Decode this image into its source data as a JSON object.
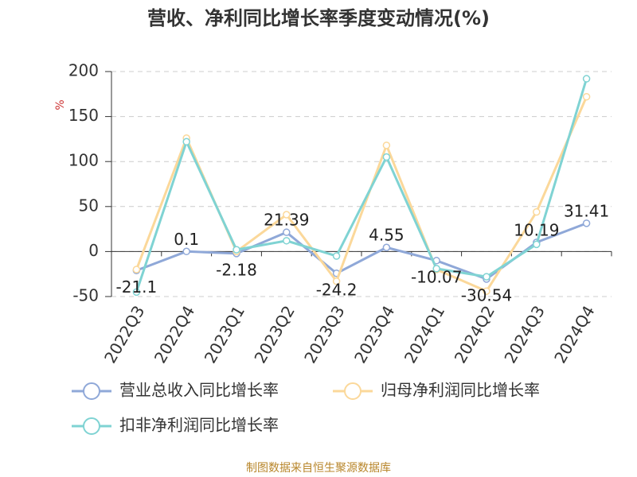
{
  "chart_data": {
    "type": "line",
    "title": "营收、净利同比增长率季度变动情况(%)",
    "y_label": "%",
    "source": "制图数据来自恒生聚源数据库",
    "categories": [
      "2022Q3",
      "2022Q4",
      "2023Q1",
      "2023Q2",
      "2023Q3",
      "2023Q4",
      "2024Q1",
      "2024Q2",
      "2024Q3",
      "2024Q4"
    ],
    "series": [
      {
        "name": "营业总收入同比增长率",
        "color": "#8fa8d8",
        "values": [
          -21.1,
          0.1,
          -2.18,
          21.39,
          -24.2,
          4.55,
          -10.07,
          -30.54,
          10.19,
          31.41
        ],
        "data_labels": true
      },
      {
        "name": "归母净利润同比增长率",
        "color": "#fbd89a",
        "values": [
          -20,
          126,
          0,
          41,
          -33,
          118,
          -20,
          -44,
          44,
          172
        ]
      },
      {
        "name": "扣非净利润同比增长率",
        "color": "#7fd3d3",
        "values": [
          -45,
          122,
          2,
          12,
          -5,
          105,
          -19,
          -28,
          8,
          192
        ]
      }
    ],
    "ylim": [
      -50,
      200
    ],
    "yticks": [
      -50,
      0,
      50,
      100,
      150,
      200
    ],
    "grid": true,
    "legend": "bottom"
  }
}
